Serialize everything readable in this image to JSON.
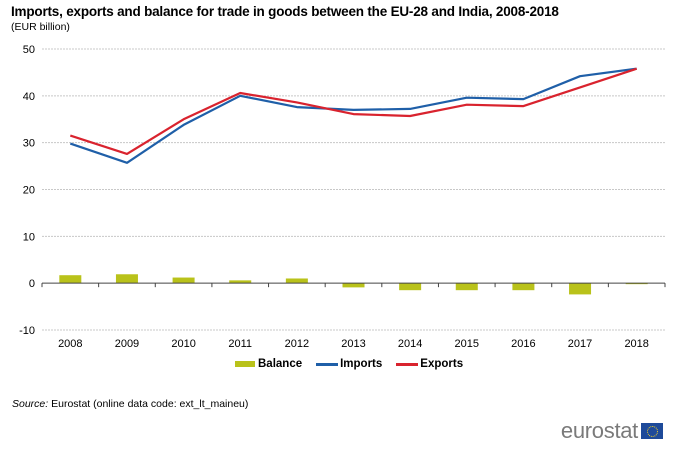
{
  "header": {
    "title": "Imports, exports and balance for trade in goods between the EU-28 and India, 2008-2018",
    "subtitle": "(EUR billion)"
  },
  "chart_data": {
    "type": "bar+line",
    "title": "Imports, exports and balance for trade in goods between the EU-28 and India, 2008-2018",
    "subtitle": "(EUR billion)",
    "xlabel": "",
    "ylabel": "EUR billion",
    "ylim": [
      -10,
      50
    ],
    "yticks": [
      -10,
      0,
      10,
      20,
      30,
      40,
      50
    ],
    "ytick_labels": [
      "-10",
      "0",
      "10",
      "20",
      "30",
      "40",
      "50"
    ],
    "grid": true,
    "legend_position": "bottom",
    "categories": [
      "2008",
      "2009",
      "2010",
      "2011",
      "2012",
      "2013",
      "2014",
      "2015",
      "2016",
      "2017",
      "2018"
    ],
    "series": [
      {
        "name": "Balance",
        "type": "bar",
        "color": "#b9c21a",
        "values": [
          1.7,
          1.9,
          1.2,
          0.6,
          1.0,
          -0.9,
          -1.5,
          -1.5,
          -1.5,
          -2.4,
          -0.1
        ]
      },
      {
        "name": "Imports",
        "type": "line",
        "color": "#1f5fa8",
        "values": [
          29.8,
          25.7,
          33.8,
          40.0,
          37.6,
          37.0,
          37.2,
          39.6,
          39.3,
          44.2,
          45.8
        ]
      },
      {
        "name": "Exports",
        "type": "line",
        "color": "#d9232e",
        "values": [
          31.5,
          27.6,
          35.0,
          40.6,
          38.6,
          36.1,
          35.7,
          38.1,
          37.8,
          41.8,
          45.8
        ]
      }
    ]
  },
  "legend": {
    "items": [
      {
        "label": "Balance",
        "color": "#b9c21a"
      },
      {
        "label": "Imports",
        "color": "#1f5fa8"
      },
      {
        "label": "Exports",
        "color": "#d9232e"
      }
    ]
  },
  "footer": {
    "source_label": "Source:",
    "source_text": "Eurostat (online data code: ext_lt_maineu)",
    "brand": "eurostat"
  }
}
